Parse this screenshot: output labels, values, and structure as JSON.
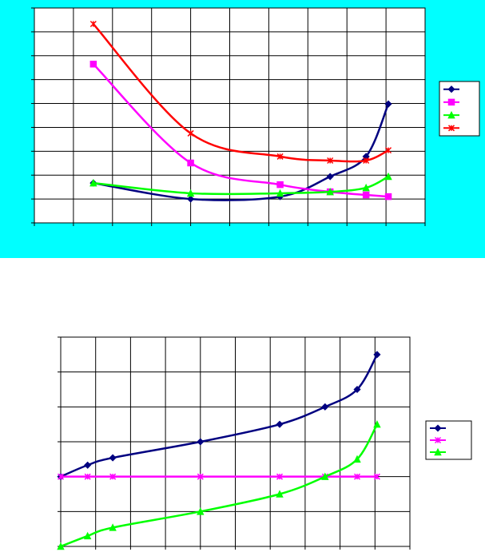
{
  "chart_data": [
    {
      "type": "line",
      "background": "#00ffff",
      "grid": true,
      "legend": "right",
      "smooth": true,
      "xlim": [
        0,
        10
      ],
      "xticks": [
        0,
        1,
        2,
        3,
        4,
        5,
        6,
        7,
        8,
        9,
        10
      ],
      "ylim": [
        0,
        9
      ],
      "yticks": [
        0,
        1,
        2,
        3,
        4,
        5,
        6,
        7,
        8,
        9
      ],
      "x": [
        1.51,
        4.0,
        6.29,
        7.57,
        8.49,
        9.06
      ],
      "series": [
        {
          "color": "#000080",
          "marker": "diamond",
          "values": [
            1.67,
            1.0,
            1.1,
            1.94,
            2.78,
            4.98
          ]
        },
        {
          "color": "#ff00ff",
          "marker": "square",
          "values": [
            6.65,
            2.51,
            1.6,
            1.3,
            1.17,
            1.1
          ]
        },
        {
          "color": "#00ff00",
          "marker": "triangle",
          "values": [
            1.67,
            1.24,
            1.24,
            1.3,
            1.47,
            1.94
          ]
        },
        {
          "color": "#ff0000",
          "marker": "star",
          "values": [
            8.33,
            3.75,
            2.78,
            2.61,
            2.61,
            3.04
          ]
        }
      ]
    },
    {
      "type": "line",
      "background": "#ffffff",
      "grid": true,
      "legend": "right",
      "smooth": true,
      "xlim": [
        0,
        10
      ],
      "xticks": [
        0,
        1,
        2,
        3,
        4,
        5,
        6,
        7,
        8,
        9,
        10
      ],
      "ylim": [
        0,
        6
      ],
      "yticks": [
        0,
        1,
        2,
        3,
        4,
        5,
        6
      ],
      "x": [
        0,
        0.77,
        1.49,
        4.0,
        6.27,
        7.57,
        8.49,
        9.06
      ],
      "series": [
        {
          "color": "#000080",
          "marker": "diamond",
          "values": [
            2.0,
            2.33,
            2.54,
            3.0,
            3.5,
            4.0,
            4.5,
            5.5
          ]
        },
        {
          "color": "#ff00ff",
          "marker": "star",
          "values": [
            2.0,
            2.0,
            2.0,
            2.0,
            2.0,
            2.0,
            2.0,
            2.0
          ]
        },
        {
          "color": "#00ff00",
          "marker": "triangle",
          "values": [
            0.0,
            0.3,
            0.54,
            1.0,
            1.5,
            2.0,
            2.5,
            3.5
          ]
        }
      ]
    }
  ]
}
